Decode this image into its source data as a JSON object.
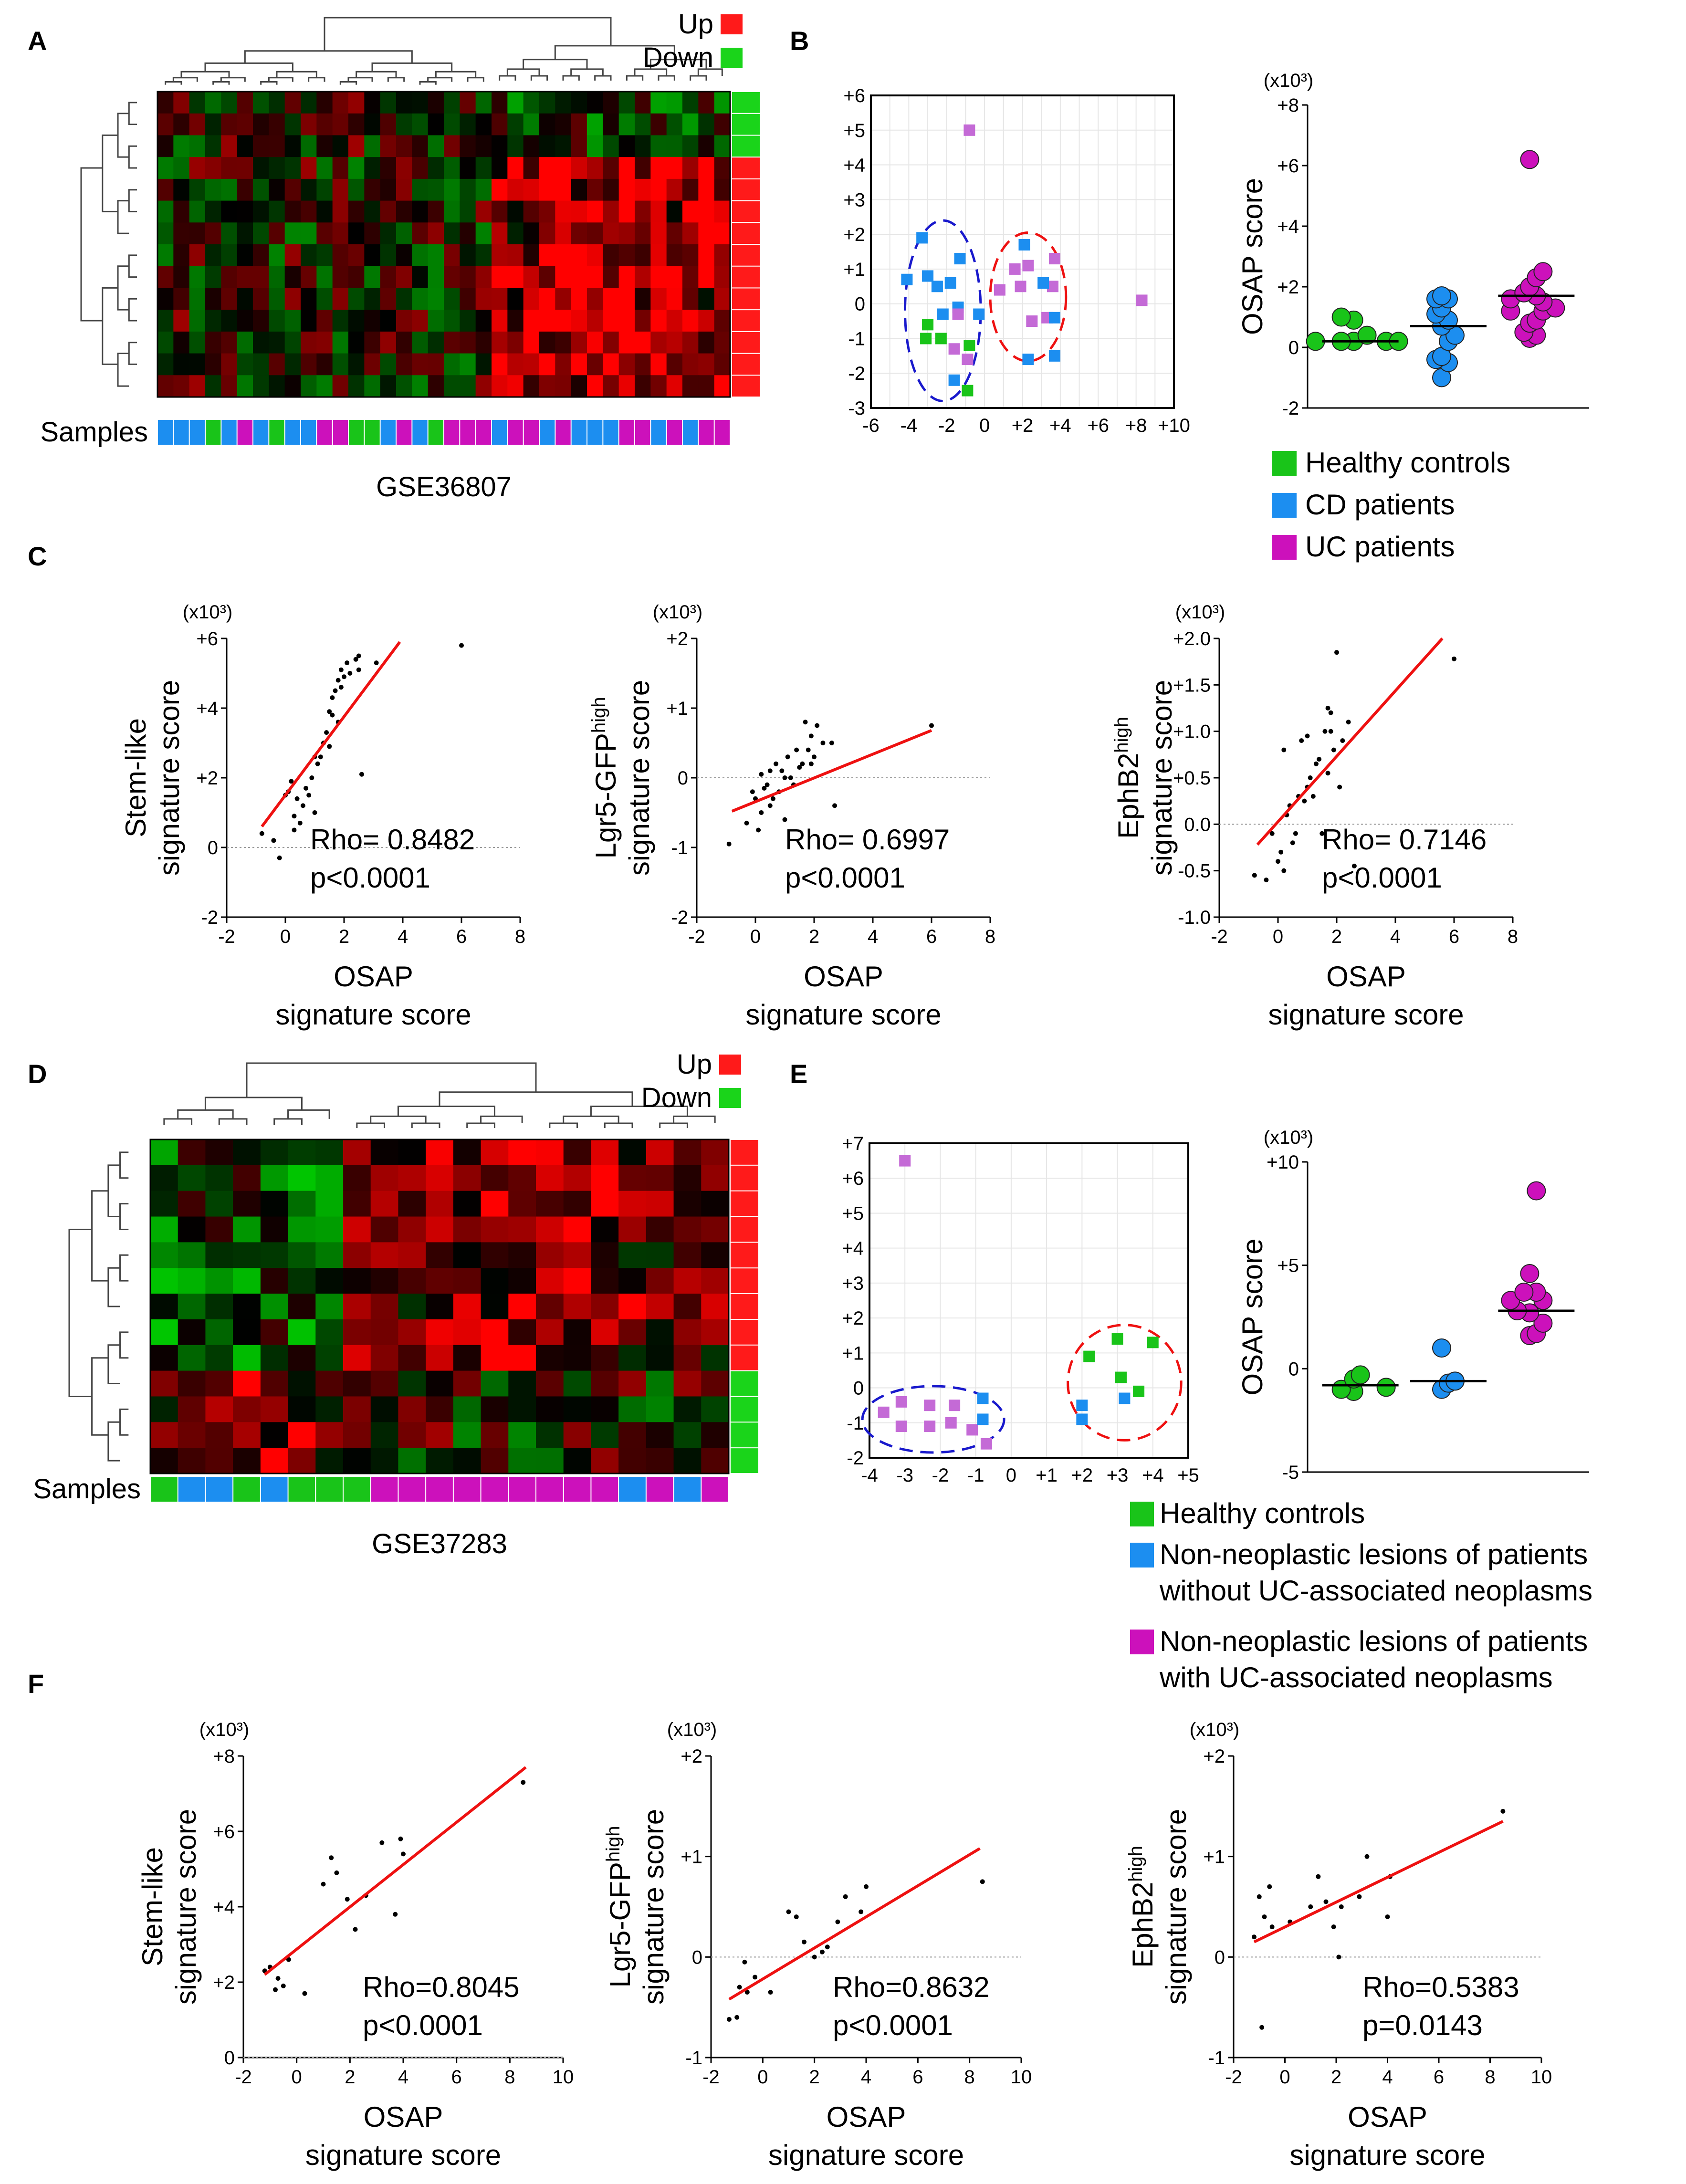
{
  "panel_letters": [
    "A",
    "B",
    "C",
    "D",
    "E",
    "F"
  ],
  "colors": {
    "up": "#ff1a1a",
    "down": "#1ad41a",
    "healthy": "#19c419",
    "cd": "#1c8ef0",
    "uc": "#cc11bb",
    "uc_light": "#c46ad6",
    "fit": "#ee1111",
    "blue_ellipse": "#1919cc",
    "red_ellipse": "#ee1111"
  },
  "heatmap_legend": {
    "up": "Up",
    "down": "Down"
  },
  "samples_label": "Samples",
  "heatmap_A": {
    "dataset": "GSE36807",
    "row_signs": [
      "down",
      "down",
      "down",
      "up",
      "up",
      "up",
      "up",
      "up",
      "up",
      "up",
      "up",
      "up",
      "up",
      "up"
    ],
    "sample_groups": [
      "cd",
      "cd",
      "cd",
      "healthy",
      "cd",
      "uc",
      "cd",
      "healthy",
      "cd",
      "cd",
      "uc",
      "uc",
      "healthy",
      "healthy",
      "cd",
      "uc",
      "cd",
      "healthy",
      "uc",
      "uc",
      "uc",
      "cd",
      "uc",
      "uc",
      "cd",
      "uc",
      "cd",
      "cd",
      "cd",
      "uc",
      "uc",
      "cd",
      "uc",
      "cd",
      "uc",
      "uc"
    ]
  },
  "heatmap_D": {
    "dataset": "GSE37283",
    "row_signs": [
      "up",
      "up",
      "up",
      "up",
      "up",
      "up",
      "up",
      "up",
      "up",
      "down",
      "down",
      "down",
      "down"
    ],
    "sample_groups": [
      "healthy",
      "cd",
      "cd",
      "healthy",
      "cd",
      "healthy",
      "healthy",
      "healthy",
      "uc",
      "uc",
      "uc",
      "uc",
      "uc",
      "uc",
      "uc",
      "uc",
      "uc",
      "cd",
      "uc",
      "cd",
      "uc"
    ]
  },
  "panel_B": {
    "pca": {
      "type": "scatter",
      "x_ticks": [
        "-6",
        "-4",
        "-2",
        "0",
        "+2",
        "+4",
        "+6",
        "+8",
        "+10"
      ],
      "y_ticks": [
        "-3",
        "-2",
        "-1",
        "0",
        "+1",
        "+2",
        "+3",
        "+4",
        "+5",
        "+6"
      ],
      "xlim": [
        -6,
        10
      ],
      "ylim": [
        -3,
        6
      ],
      "points": [
        {
          "g": "uc",
          "x": -0.8,
          "y": 5.0
        },
        {
          "g": "uc",
          "x": 8.3,
          "y": 0.1
        },
        {
          "g": "cd",
          "x": -3.3,
          "y": 1.9
        },
        {
          "g": "cd",
          "x": -4.1,
          "y": 0.7
        },
        {
          "g": "cd",
          "x": -3.0,
          "y": 0.8
        },
        {
          "g": "cd",
          "x": -2.5,
          "y": 0.5
        },
        {
          "g": "cd",
          "x": -1.8,
          "y": 0.6
        },
        {
          "g": "cd",
          "x": -1.3,
          "y": 1.3
        },
        {
          "g": "cd",
          "x": -2.2,
          "y": -0.3
        },
        {
          "g": "cd",
          "x": -1.4,
          "y": -0.1
        },
        {
          "g": "cd",
          "x": -1.6,
          "y": -2.2
        },
        {
          "g": "cd",
          "x": -0.3,
          "y": -0.3
        },
        {
          "g": "healthy",
          "x": -3.0,
          "y": -0.6
        },
        {
          "g": "healthy",
          "x": -3.1,
          "y": -1.0
        },
        {
          "g": "healthy",
          "x": -2.3,
          "y": -1.0
        },
        {
          "g": "healthy",
          "x": -0.8,
          "y": -1.2
        },
        {
          "g": "healthy",
          "x": -0.9,
          "y": -2.5
        },
        {
          "g": "uc",
          "x": -1.4,
          "y": -0.3
        },
        {
          "g": "uc",
          "x": -1.6,
          "y": -1.3
        },
        {
          "g": "uc",
          "x": -0.9,
          "y": -1.6
        },
        {
          "g": "uc",
          "x": 0.8,
          "y": 0.4
        },
        {
          "g": "uc",
          "x": 1.6,
          "y": 1.0
        },
        {
          "g": "uc",
          "x": 2.3,
          "y": 1.1
        },
        {
          "g": "uc",
          "x": 3.7,
          "y": 1.3
        },
        {
          "g": "uc",
          "x": 3.6,
          "y": 0.5
        },
        {
          "g": "uc",
          "x": 1.9,
          "y": 0.5
        },
        {
          "g": "uc",
          "x": 2.5,
          "y": -0.5
        },
        {
          "g": "uc",
          "x": 3.3,
          "y": -0.4
        },
        {
          "g": "cd",
          "x": 2.1,
          "y": 1.7
        },
        {
          "g": "cd",
          "x": 3.1,
          "y": 0.6
        },
        {
          "g": "cd",
          "x": 3.7,
          "y": -0.4
        },
        {
          "g": "cd",
          "x": 2.3,
          "y": -1.6
        },
        {
          "g": "cd",
          "x": 3.7,
          "y": -1.5
        }
      ]
    },
    "score": {
      "type": "scatter",
      "multiplier": "(x10³)",
      "ylabel": "OSAP score",
      "y_ticks": [
        "-2",
        "0",
        "+2",
        "+4",
        "+6",
        "+8"
      ],
      "ylim": [
        -2,
        8
      ],
      "groups": [
        {
          "g": "healthy",
          "values": [
            0.2,
            0.2,
            0.2,
            0.2,
            0.2,
            0.4,
            0.9,
            1.0
          ],
          "median": 0.2
        },
        {
          "g": "cd",
          "values": [
            -1.0,
            -0.5,
            -0.4,
            -0.3,
            0.2,
            0.4,
            0.7,
            0.9,
            1.1,
            1.3,
            1.6,
            1.6,
            1.7
          ],
          "median": 0.7
        },
        {
          "g": "uc",
          "values": [
            0.3,
            0.4,
            0.5,
            0.8,
            0.9,
            1.2,
            1.2,
            1.3,
            1.5,
            1.6,
            1.7,
            1.8,
            2.0,
            2.3,
            2.5,
            6.2
          ],
          "median": 1.7
        }
      ]
    },
    "legend": [
      "Healthy controls",
      "CD patients",
      "UC patients"
    ]
  },
  "panel_E": {
    "pca": {
      "type": "scatter",
      "x_ticks": [
        "-4",
        "-3",
        "-2",
        "-1",
        "0",
        "+1",
        "+2",
        "+3",
        "+4",
        "+5"
      ],
      "y_ticks": [
        "-2",
        "-1",
        "0",
        "+1",
        "+2",
        "+3",
        "+4",
        "+5",
        "+6",
        "+7"
      ],
      "xlim": [
        -4,
        5
      ],
      "ylim": [
        -2,
        7
      ],
      "points": [
        {
          "g": "uc",
          "x": -3.0,
          "y": 6.5
        },
        {
          "g": "uc",
          "x": -3.6,
          "y": -0.7
        },
        {
          "g": "uc",
          "x": -3.1,
          "y": -0.4
        },
        {
          "g": "uc",
          "x": -2.3,
          "y": -0.5
        },
        {
          "g": "uc",
          "x": -3.1,
          "y": -1.1
        },
        {
          "g": "uc",
          "x": -2.3,
          "y": -1.1
        },
        {
          "g": "uc",
          "x": -1.7,
          "y": -1.0
        },
        {
          "g": "uc",
          "x": -1.6,
          "y": -0.5
        },
        {
          "g": "uc",
          "x": -1.1,
          "y": -1.2
        },
        {
          "g": "uc",
          "x": -0.7,
          "y": -1.6
        },
        {
          "g": "cd",
          "x": -0.8,
          "y": -0.3
        },
        {
          "g": "cd",
          "x": -0.8,
          "y": -0.9
        },
        {
          "g": "cd",
          "x": 2.0,
          "y": -0.9
        },
        {
          "g": "cd",
          "x": 2.0,
          "y": -0.5
        },
        {
          "g": "cd",
          "x": 3.2,
          "y": -0.3
        },
        {
          "g": "healthy",
          "x": 2.2,
          "y": 0.9
        },
        {
          "g": "healthy",
          "x": 3.0,
          "y": 1.4
        },
        {
          "g": "healthy",
          "x": 4.0,
          "y": 1.3
        },
        {
          "g": "healthy",
          "x": 3.1,
          "y": 0.3
        },
        {
          "g": "healthy",
          "x": 3.6,
          "y": -0.1
        }
      ]
    },
    "score": {
      "type": "scatter",
      "multiplier": "(x10³)",
      "ylabel": "OSAP score",
      "y_ticks": [
        "-5",
        "0",
        "+5",
        "+10"
      ],
      "ylim": [
        -5,
        10
      ],
      "groups": [
        {
          "g": "healthy",
          "values": [
            -1.1,
            -1.0,
            -0.9,
            -0.5,
            -0.3
          ],
          "median": -0.8
        },
        {
          "g": "cd",
          "values": [
            -1.0,
            -0.7,
            -0.6,
            1.0
          ],
          "median": -0.6
        },
        {
          "g": "uc",
          "values": [
            1.6,
            1.7,
            2.2,
            2.7,
            2.8,
            3.3,
            3.3,
            3.7,
            3.7,
            4.6,
            8.6
          ],
          "median": 2.8
        }
      ]
    },
    "legend": [
      [
        "Healthy controls"
      ],
      [
        "Non-neoplastic lesions of patients",
        "without UC-associated neoplasms"
      ],
      [
        "Non-neoplastic lesions of patients",
        "with UC-associated neoplasms"
      ]
    ]
  },
  "panel_C": [
    {
      "type": "scatter",
      "multiplier": "(x10³)",
      "ylabel": [
        "Stem-like",
        "signature score"
      ],
      "xlabel": [
        "OSAP",
        "signature score"
      ],
      "x_ticks": [
        "-2",
        "0",
        "2",
        "4",
        "6",
        "8"
      ],
      "xlim": [
        -2,
        8
      ],
      "y_ticks": [
        "-2",
        "0",
        "+2",
        "+4",
        "+6"
      ],
      "ylim": [
        -2,
        6
      ],
      "rho": "Rho= 0.8482",
      "p": "p<0.0001",
      "fit": [
        [
          -0.8,
          0.6
        ],
        [
          3.9,
          5.9
        ]
      ],
      "x": [
        -0.8,
        -0.4,
        0.0,
        0.3,
        0.6,
        0.1,
        0.2,
        0.4,
        0.8,
        1.0,
        0.5,
        0.9,
        1.2,
        0.7,
        0.3,
        -0.2,
        1.5,
        1.4,
        1.8,
        1.6,
        1.3,
        1.0,
        1.6,
        1.9,
        2.4,
        2.0,
        2.5,
        1.7,
        1.9,
        2.1,
        1.5,
        1.1,
        1.8,
        2.2,
        2.6,
        3.1,
        6.0,
        2.5
      ],
      "y": [
        0.4,
        0.2,
        1.5,
        0.9,
        1.2,
        1.6,
        1.9,
        1.4,
        1.5,
        1.0,
        0.7,
        2.0,
        2.6,
        1.7,
        0.5,
        -0.3,
        2.9,
        3.3,
        3.6,
        3.8,
        3.0,
        2.6,
        4.3,
        4.6,
        5.4,
        4.9,
        5.5,
        4.5,
        5.1,
        5.3,
        3.9,
        2.4,
        4.8,
        5.0,
        2.1,
        5.3,
        5.8,
        5.1
      ]
    },
    {
      "type": "scatter",
      "multiplier": "(x10³)",
      "ylabel": [
        "Lgr5-GFP",
        "high",
        "signature score"
      ],
      "xlabel": [
        "OSAP",
        "signature score"
      ],
      "x_ticks": [
        "-2",
        "0",
        "2",
        "4",
        "6",
        "8"
      ],
      "xlim": [
        -2,
        8
      ],
      "y_ticks": [
        "-2",
        "-1",
        "0",
        "+1",
        "+2"
      ],
      "ylim": [
        -2,
        2
      ],
      "rho": "Rho= 0.6997",
      "p": "p<0.0001",
      "fit": [
        [
          -0.8,
          -0.48
        ],
        [
          6.0,
          0.68
        ]
      ],
      "x": [
        -0.9,
        -0.3,
        0.0,
        0.2,
        0.5,
        0.4,
        0.8,
        1.0,
        0.2,
        0.7,
        1.1,
        1.4,
        1.6,
        1.9,
        2.1,
        0.6,
        1.2,
        1.8,
        2.3,
        0.9,
        1.5,
        1.7,
        1.3,
        2.7,
        2.6,
        6.0,
        0.1,
        0.3,
        -0.1,
        0.5,
        1.0,
        1.9,
        2.0
      ],
      "y": [
        -0.95,
        -0.65,
        -0.3,
        -0.5,
        -0.4,
        -0.1,
        -0.2,
        -0.6,
        0.05,
        0.2,
        0.3,
        0.4,
        0.2,
        0.6,
        0.75,
        -0.3,
        0.0,
        0.4,
        0.5,
        0.1,
        0.15,
        0.8,
        -0.1,
        -0.4,
        0.5,
        0.75,
        -0.75,
        -0.15,
        -0.2,
        0.1,
        0.0,
        0.2,
        0.3
      ]
    },
    {
      "type": "scatter",
      "multiplier": "(x10³)",
      "ylabel": [
        "EphB2",
        "high",
        "signature score"
      ],
      "xlabel": [
        "OSAP",
        "signature score"
      ],
      "x_ticks": [
        "-2",
        "0",
        "2",
        "4",
        "6",
        "8"
      ],
      "xlim": [
        -2,
        8
      ],
      "y_ticks": [
        "-1.0",
        "-0.5",
        "0.0",
        "+0.5",
        "+1.0",
        "+1.5",
        "+2.0"
      ],
      "ylim": [
        -1,
        2
      ],
      "rho": "Rho= 0.7146",
      "p": "p<0.0001",
      "fit": [
        [
          -0.7,
          -0.22
        ],
        [
          5.6,
          2.0
        ]
      ],
      "x": [
        -0.8,
        -0.4,
        0.0,
        0.2,
        0.5,
        0.3,
        0.7,
        1.0,
        0.2,
        0.8,
        1.1,
        1.4,
        1.6,
        1.8,
        2.0,
        0.6,
        1.2,
        1.9,
        2.4,
        0.9,
        1.5,
        1.7,
        1.3,
        2.1,
        2.6,
        6.0,
        0.1,
        0.4,
        -0.2,
        1.0,
        1.8,
        1.7,
        2.2
      ],
      "y": [
        -0.55,
        -0.6,
        -0.4,
        -0.5,
        -0.2,
        0.1,
        0.3,
        0.4,
        0.8,
        0.9,
        0.5,
        0.7,
        1.0,
        1.2,
        1.85,
        -0.1,
        0.3,
        0.8,
        1.1,
        0.25,
        -0.1,
        1.25,
        0.65,
        0.4,
        -0.45,
        1.78,
        -0.3,
        0.2,
        -0.1,
        0.95,
        1.0,
        0.55,
        0.9
      ]
    }
  ],
  "panel_F": [
    {
      "type": "scatter",
      "multiplier": "(x10³)",
      "ylabel": [
        "Stem-like",
        "signature score"
      ],
      "xlabel": [
        "OSAP",
        "signature score"
      ],
      "x_ticks": [
        "-2",
        "0",
        "2",
        "4",
        "6",
        "8",
        "10"
      ],
      "xlim": [
        -2,
        10
      ],
      "y_ticks": [
        "0",
        "+2",
        "+4",
        "+6",
        "+8"
      ],
      "ylim": [
        0,
        8
      ],
      "rho": "Rho=0.8045",
      "p": "p<0.0001",
      "fit": [
        [
          -1.2,
          2.2
        ],
        [
          8.6,
          7.7
        ]
      ],
      "x": [
        -1.2,
        -1.0,
        -0.8,
        -0.7,
        -0.5,
        -0.3,
        0.3,
        1.0,
        1.3,
        1.5,
        1.9,
        2.2,
        2.6,
        3.2,
        3.7,
        3.9,
        4.0,
        8.5
      ],
      "y": [
        2.3,
        2.4,
        1.8,
        2.1,
        1.9,
        2.6,
        1.7,
        4.6,
        5.3,
        4.9,
        4.2,
        3.4,
        4.3,
        5.7,
        3.8,
        5.8,
        5.4,
        7.3
      ]
    },
    {
      "type": "scatter",
      "multiplier": "(x10³)",
      "ylabel": [
        "Lgr5-GFP",
        "high",
        "signature score"
      ],
      "xlabel": [
        "OSAP",
        "signature score"
      ],
      "x_ticks": [
        "-2",
        "0",
        "2",
        "4",
        "6",
        "8",
        "10"
      ],
      "xlim": [
        -2,
        10
      ],
      "y_ticks": [
        "-1",
        "0",
        "+1",
        "+2"
      ],
      "ylim": [
        -1,
        2
      ],
      "rho": "Rho=0.8632",
      "p": "p<0.0001",
      "fit": [
        [
          -1.3,
          -0.42
        ],
        [
          8.4,
          1.08
        ]
      ],
      "x": [
        -1.3,
        -1.0,
        -0.9,
        -0.7,
        -0.6,
        0.3,
        1.0,
        1.3,
        1.6,
        2.0,
        2.3,
        2.9,
        3.2,
        3.8,
        4.0,
        8.5,
        -0.3,
        2.5
      ],
      "y": [
        -0.62,
        -0.6,
        -0.3,
        -0.05,
        -0.35,
        -0.35,
        0.45,
        0.4,
        0.15,
        0.0,
        0.05,
        0.35,
        0.6,
        0.45,
        0.7,
        0.75,
        -0.2,
        0.1
      ]
    },
    {
      "type": "scatter",
      "multiplier": "(x10³)",
      "ylabel": [
        "EphB2",
        "high",
        "signature score"
      ],
      "xlabel": [
        "OSAP",
        "signature score"
      ],
      "x_ticks": [
        "-2",
        "0",
        "2",
        "4",
        "6",
        "8",
        "10"
      ],
      "xlim": [
        -2,
        10
      ],
      "y_ticks": [
        "-1",
        "0",
        "+1",
        "+2"
      ],
      "ylim": [
        -1,
        2
      ],
      "rho": "Rho=0.5383",
      "p": "p=0.0143",
      "fit": [
        [
          -1.2,
          0.15
        ],
        [
          8.5,
          1.35
        ]
      ],
      "x": [
        -1.2,
        -1.0,
        -0.8,
        -0.6,
        -0.9,
        -0.5,
        0.2,
        1.0,
        1.3,
        1.6,
        1.9,
        2.1,
        2.2,
        2.9,
        3.2,
        4.0,
        4.1,
        8.5
      ],
      "y": [
        0.2,
        0.6,
        0.4,
        0.7,
        -0.7,
        0.3,
        0.35,
        0.5,
        0.8,
        0.55,
        0.3,
        0.0,
        0.5,
        0.6,
        1.0,
        0.4,
        0.8,
        1.45
      ]
    }
  ]
}
